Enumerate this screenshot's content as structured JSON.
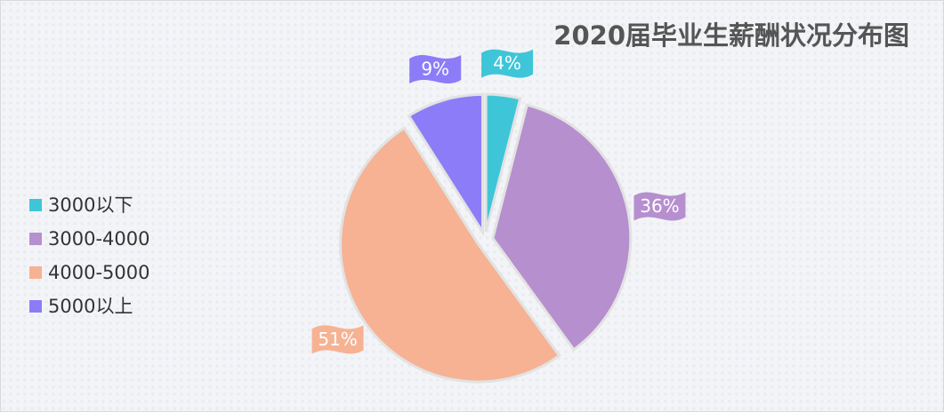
{
  "chart_data": {
    "type": "pie",
    "title": "2020届毕业生薪酬状况分布图",
    "categories": [
      "3000以下",
      "3000-4000",
      "4000-5000",
      "5000以上"
    ],
    "values": [
      4,
      36,
      51,
      9
    ],
    "value_labels": [
      "4%",
      "36%",
      "51%",
      "9%"
    ],
    "colors": [
      "#3ec6d8",
      "#b68fcf",
      "#f6b293",
      "#8c7cf8"
    ],
    "legend": "left"
  }
}
